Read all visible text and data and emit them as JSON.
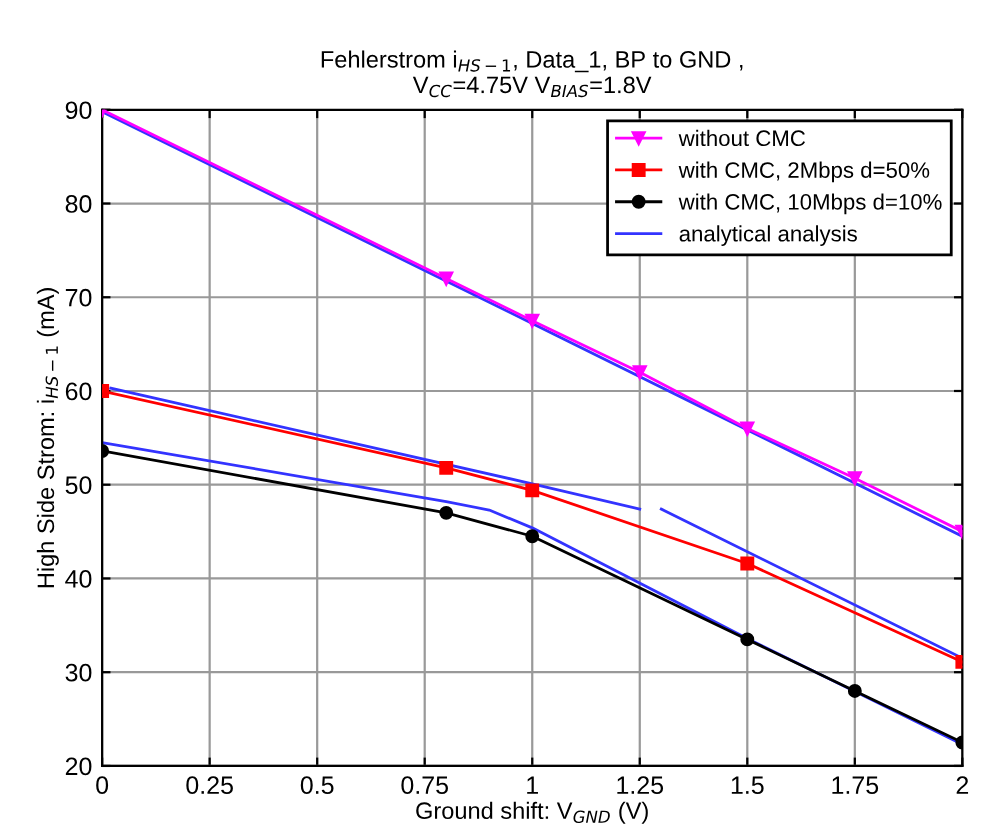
{
  "chart_data": {
    "type": "line",
    "title": "Fehlerstrom i$_{HS−1}$, Data_1, BP to GND ,\nV$_{CC}$=4.75V V$_{BIAS}$=1.8V",
    "xlabel": "Ground shift: V$_{GND}$ (V)",
    "ylabel": "High Side Strom: i$_{HS−1}$ (mA)",
    "series": [
      {
        "name": "without CMC",
        "color": "#ff00ff",
        "marker": "triangle",
        "x": [
          0,
          0.8,
          1,
          1.25,
          1.5,
          1.75,
          2
        ],
        "values": [
          90,
          72,
          67.5,
          62,
          56,
          50.7,
          45
        ]
      },
      {
        "name": "with CMC, 2Mbps d=50%",
        "color": "#ff0000",
        "marker": "square",
        "x": [
          0,
          0.8,
          1,
          1.5,
          2
        ],
        "values": [
          60,
          51.8,
          49.4,
          41.6,
          31.1
        ]
      },
      {
        "name": "with CMC, 10Mbps d=10%",
        "color": "#000000",
        "marker": "circle",
        "x": [
          0,
          0.8,
          1,
          1.5,
          1.75,
          2
        ],
        "values": [
          53.6,
          47,
          44.5,
          33.5,
          28,
          22.5
        ]
      },
      {
        "name": "analytical analysis",
        "color": "#3333ff",
        "marker": "none",
        "x": [
          0,
          1,
          2
        ],
        "values": [
          89.8,
          67.2,
          44.5
        ]
      },
      {
        "color": "#3333ff",
        "marker": "none",
        "x": [
          0.02,
          1,
          1.25,
          1.27,
          1.3,
          2
        ],
        "values": [
          60.3,
          50.1,
          47.4,
          null,
          47.4,
          31.5
        ]
      },
      {
        "color": "#3333ff",
        "marker": "none",
        "x": [
          0,
          0.8,
          0.9,
          1,
          1.5,
          2
        ],
        "values": [
          54.5,
          48.2,
          47.3,
          45.4,
          33.6,
          22.3
        ]
      }
    ],
    "xlim": [
      0,
      2
    ],
    "xticks": [
      0,
      0.25,
      0.5,
      0.75,
      1,
      1.25,
      1.5,
      1.75,
      2
    ],
    "ylim": [
      20,
      90
    ],
    "yticks": [
      20,
      30,
      40,
      50,
      60,
      70,
      80,
      90
    ],
    "grid": true,
    "legend": "top right",
    "line_style": "solid"
  }
}
